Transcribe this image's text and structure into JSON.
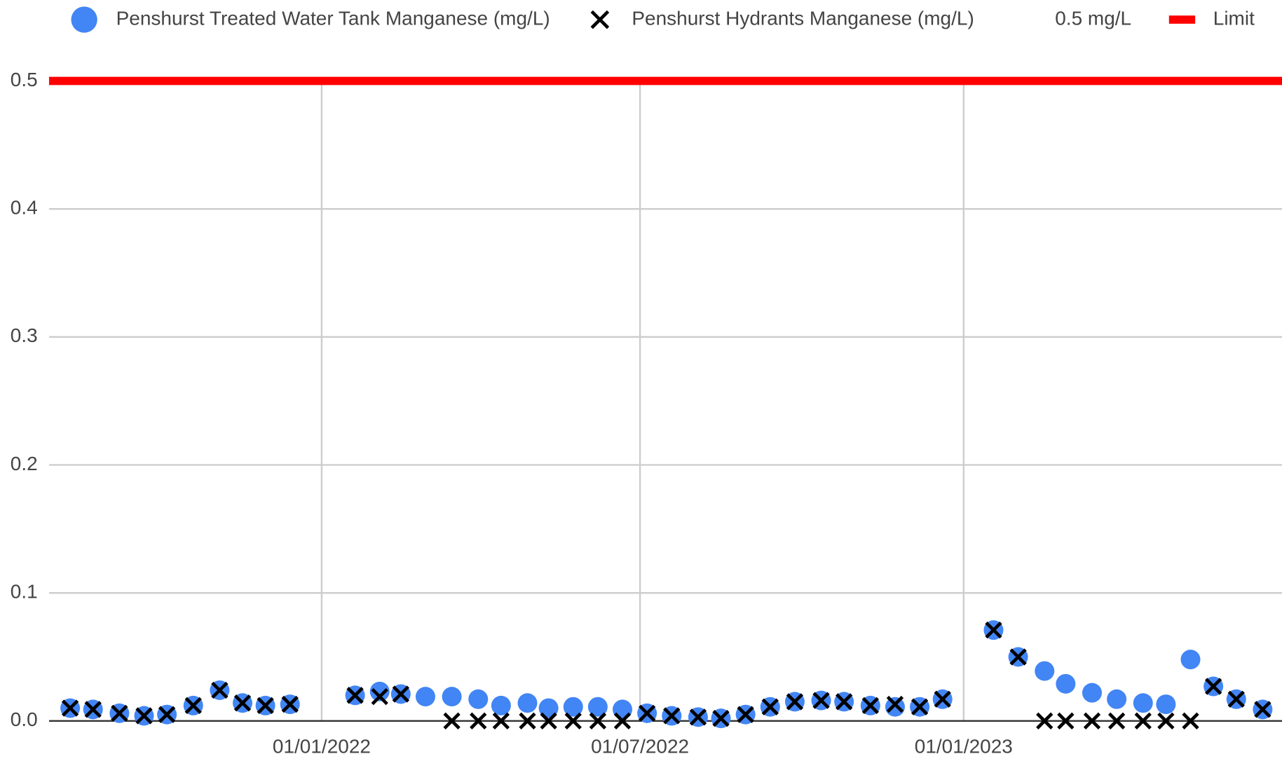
{
  "chart_data": {
    "type": "scatter",
    "x": [
      "11/08/2021",
      "24/08/2021",
      "08/09/2021",
      "22/09/2021",
      "05/10/2021",
      "20/10/2021",
      "04/11/2021",
      "17/11/2021",
      "30/11/2021",
      "14/12/2021",
      "20/01/2022",
      "03/02/2022",
      "15/02/2022",
      "01/03/2022",
      "16/03/2022",
      "31/03/2022",
      "13/04/2022",
      "28/04/2022",
      "10/05/2022",
      "24/05/2022",
      "07/06/2022",
      "21/06/2022",
      "05/07/2022",
      "19/07/2022",
      "03/08/2022",
      "16/08/2022",
      "30/08/2022",
      "13/09/2022",
      "27/09/2022",
      "12/10/2022",
      "25/10/2022",
      "09/11/2022",
      "23/11/2022",
      "07/12/2022",
      "20/12/2022",
      "18/01/2023",
      "01/02/2023",
      "16/02/2023",
      "28/02/2023",
      "15/03/2023",
      "29/03/2023",
      "13/04/2023",
      "26/04/2023",
      "10/05/2023",
      "23/05/2023",
      "05/06/2023",
      "20/06/2023"
    ],
    "series": [
      {
        "name": "Penshurst Treated Water Tank Manganese (mg/L)",
        "color": "#4285f4",
        "marker": "circle",
        "values": [
          0.01,
          0.009,
          0.006,
          0.004,
          0.005,
          0.012,
          0.024,
          0.014,
          0.012,
          0.013,
          0.02,
          0.023,
          0.021,
          0.019,
          0.019,
          0.017,
          0.012,
          0.014,
          0.01,
          0.011,
          0.011,
          0.009,
          0.006,
          0.004,
          0.003,
          0.002,
          0.005,
          0.011,
          0.015,
          0.016,
          0.015,
          0.012,
          0.011,
          0.011,
          0.017,
          0.071,
          0.05,
          0.039,
          0.029,
          0.022,
          0.017,
          0.014,
          0.013,
          0.048,
          0.027,
          0.017,
          0.009
        ]
      },
      {
        "name": "Penshurst Hydrants Manganese (mg/L)",
        "color": "#000000",
        "marker": "x",
        "values": [
          0.01,
          0.009,
          0.006,
          0.004,
          0.005,
          0.012,
          0.024,
          0.014,
          0.012,
          0.013,
          0.02,
          0.019,
          0.021,
          null,
          0,
          0,
          0,
          0,
          0,
          0,
          0,
          0,
          0.006,
          0.004,
          0.003,
          0.002,
          0.005,
          0.011,
          0.015,
          0.016,
          0.015,
          0.012,
          0.013,
          0.011,
          0.017,
          0.071,
          0.05,
          0,
          0,
          0,
          0,
          0,
          0,
          0,
          0.027,
          0.017,
          0.009
        ]
      }
    ],
    "reference_line": {
      "label": "0.5 mg/L",
      "name": "Limit",
      "value": 0.5,
      "color": "#ff0000"
    },
    "xlim": [
      "30/07/2021",
      "01/07/2023"
    ],
    "xticks": [
      "01/01/2022",
      "01/07/2022",
      "01/01/2023"
    ],
    "ylim": [
      0,
      0.5
    ],
    "yticks": [
      {
        "value": 0,
        "label": "0.0"
      },
      0.1,
      0.2,
      0.3,
      0.4,
      0.5
    ],
    "grid": true
  }
}
